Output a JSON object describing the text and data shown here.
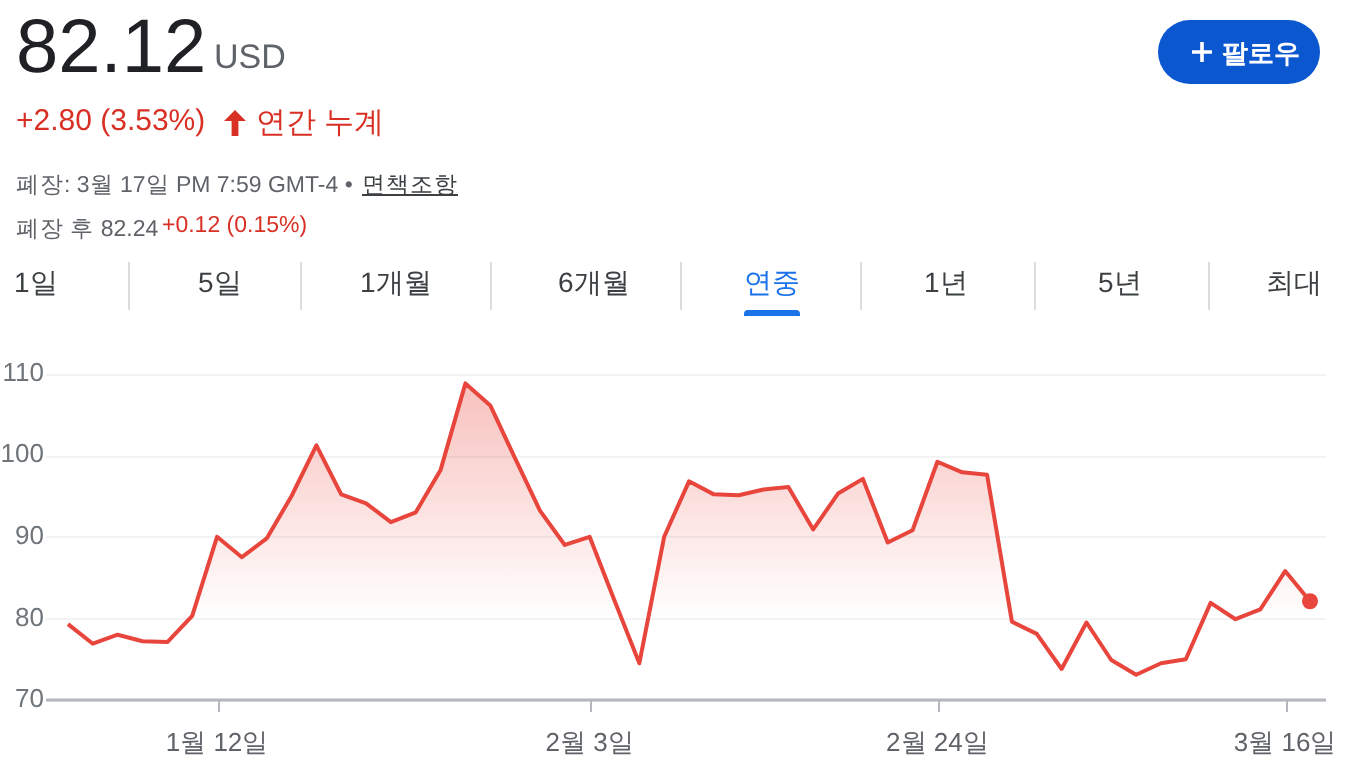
{
  "chart_data": {
    "type": "area",
    "title": "82.12",
    "annotations": [
      "USD",
      "+2.80 (3.53%)",
      "연간 누계",
      "폐장: 3월 17일 PM 7:59 GMT-4 •",
      "면책조항",
      "폐장 후 82.24",
      "+0.12 (0.15%)",
      "팔로우",
      "1일",
      "5일",
      "1개월",
      "6개월",
      "연중",
      "1년",
      "5년",
      "최대"
    ],
    "categories": [
      null,
      null,
      null,
      null,
      null,
      null,
      "1월 12일",
      null,
      null,
      null,
      null,
      null,
      null,
      null,
      null,
      null,
      null,
      null,
      null,
      null,
      null,
      "2월 3일",
      null,
      null,
      null,
      null,
      null,
      null,
      null,
      null,
      null,
      null,
      null,
      null,
      null,
      "2월 24일",
      null,
      null,
      null,
      null,
      null,
      null,
      null,
      null,
      null,
      null,
      null,
      null,
      null,
      "3월 16일",
      null
    ],
    "values": [
      79.3,
      76.9,
      78.0,
      77.2,
      77.1,
      80.3,
      90.0,
      87.5,
      89.8,
      95.0,
      101.2,
      95.2,
      94.1,
      91.8,
      93.0,
      98.2,
      108.8,
      106.1,
      99.6,
      93.2,
      89.0,
      90.0,
      82.2,
      74.5,
      90.0,
      96.8,
      95.2,
      95.1,
      95.8,
      96.1,
      90.9,
      95.3,
      97.1,
      89.3,
      90.8,
      99.2,
      97.9,
      97.6,
      79.6,
      78.1,
      73.8,
      79.5,
      74.9,
      73.1,
      74.5,
      75.0,
      81.9,
      79.9,
      81.1,
      85.8,
      82.1
    ],
    "color": "#e8453c",
    "ylim": [
      70,
      110
    ],
    "yticks": [
      70,
      80,
      90,
      100,
      110
    ],
    "grid": "y",
    "legend": false
  }
}
